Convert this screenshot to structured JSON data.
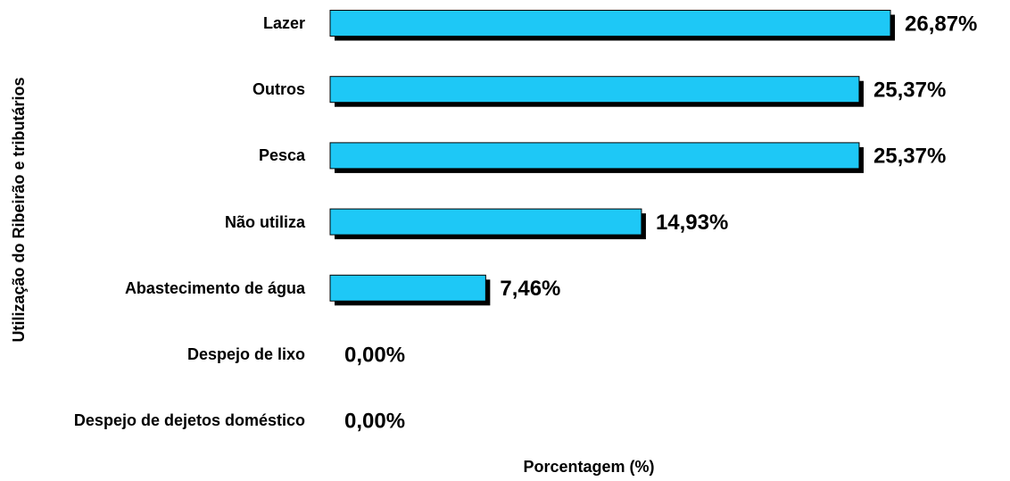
{
  "chart_data": {
    "type": "bar",
    "orientation": "horizontal",
    "y_label": "Utilização do Ribeirão e tributários",
    "x_label": "Porcentagem (%)",
    "categories": [
      "Lazer",
      "Outros",
      "Pesca",
      "Não utiliza",
      "Abastecimento de água",
      "Despejo de lixo",
      "Despejo de dejetos doméstico"
    ],
    "values": [
      26.87,
      25.37,
      25.37,
      14.93,
      7.46,
      0,
      0
    ],
    "value_labels": [
      "26,87%",
      "25,37%",
      "25,37%",
      "14,93%",
      "7,46%",
      "0,00%",
      "0,00%"
    ],
    "color": "#1ec8f6"
  }
}
